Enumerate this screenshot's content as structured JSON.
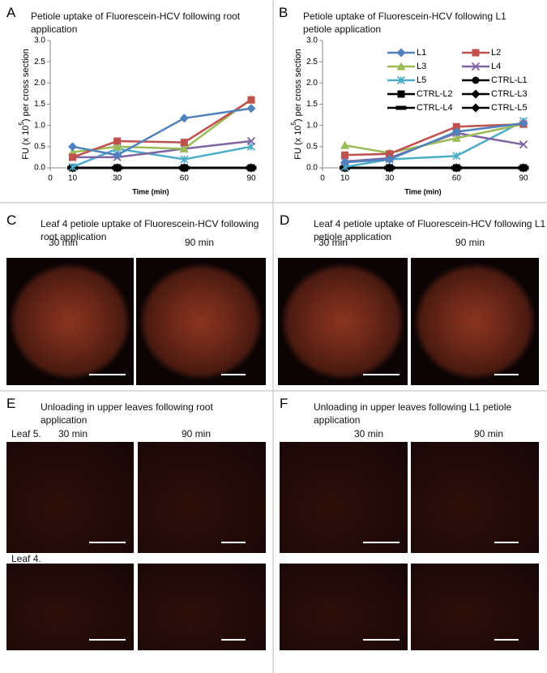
{
  "chart_data": [
    {
      "type": "line",
      "panel_label": "A",
      "title": "Petiole uptake of Fluorescein-HCV following root application",
      "ylabel": "FU (x 10",
      "ylabel_sup": "5",
      "ylabel_end": ") per cross section",
      "xlabel": "Time (min)",
      "x": [
        10,
        30,
        60,
        90
      ],
      "xlim": [
        0,
        90
      ],
      "xticks": [
        0,
        10,
        30,
        60,
        90
      ],
      "ylim": [
        0,
        3
      ],
      "yticks": [
        {
          "value": 0,
          "label": "0.0"
        },
        {
          "value": 0.5,
          "label": "0.5"
        },
        {
          "value": 1,
          "label": "1.0"
        },
        {
          "value": 1.5,
          "label": "1.5"
        },
        {
          "value": 2,
          "label": "2.0"
        },
        {
          "value": 2.5,
          "label": "2.5"
        },
        {
          "value": 3,
          "label": "3.0"
        }
      ],
      "grid": false,
      "legend": false,
      "series": [
        {
          "color": "#4f81bd",
          "marker": "diamond",
          "values": [
            0.5,
            0.3,
            1.17,
            1.4
          ]
        },
        {
          "color": "#c0504d",
          "marker": "square",
          "values": [
            0.25,
            0.63,
            0.6,
            1.6
          ]
        },
        {
          "color": "#9bbb59",
          "marker": "triangle",
          "values": [
            0.37,
            0.5,
            0.45,
            1.62
          ]
        },
        {
          "color": "#8064a2",
          "marker": "x",
          "values": [
            0.25,
            0.25,
            0.45,
            0.63
          ]
        },
        {
          "color": "#4bacc6",
          "marker": "star",
          "values": [
            0.02,
            0.45,
            0.2,
            0.5
          ]
        },
        {
          "color": "#000000",
          "marker": "circle",
          "values": [
            0,
            0,
            0,
            0
          ]
        },
        {
          "color": "#000000",
          "marker": "square",
          "values": [
            0,
            0,
            0,
            0
          ]
        },
        {
          "color": "#000000",
          "marker": "diamond",
          "values": [
            0,
            0,
            0,
            0
          ]
        },
        {
          "color": "#000000",
          "marker": "dash",
          "values": [
            0,
            0,
            0,
            0
          ]
        },
        {
          "color": "#000000",
          "marker": "diamond",
          "values": [
            0,
            0,
            0,
            0
          ]
        }
      ]
    },
    {
      "type": "line",
      "panel_label": "B",
      "title": "Petiole uptake of Fluorescein-HCV following L1 petiole application",
      "ylabel": "FU (x 10",
      "ylabel_sup": "5",
      "ylabel_end": ") per cross section",
      "xlabel": "Time (min)",
      "x": [
        10,
        30,
        60,
        90
      ],
      "xlim": [
        0,
        90
      ],
      "xticks": [
        0,
        10,
        30,
        60,
        90
      ],
      "ylim": [
        0,
        3
      ],
      "yticks": [
        {
          "value": 0,
          "label": "0.0"
        },
        {
          "value": 0.5,
          "label": "0.5"
        },
        {
          "value": 1,
          "label": "1.0"
        },
        {
          "value": 1.5,
          "label": "1.5"
        },
        {
          "value": 2,
          "label": "2.0"
        },
        {
          "value": 2.5,
          "label": "2.5"
        },
        {
          "value": 3,
          "label": "3.0"
        }
      ],
      "grid": false,
      "legend": "upper right",
      "legend_ncol": 2,
      "series": [
        {
          "name": "L1",
          "color": "#4f81bd",
          "marker": "diamond",
          "values": [
            0.13,
            0.2,
            0.85,
            1.05
          ]
        },
        {
          "name": "L2",
          "color": "#c0504d",
          "marker": "square",
          "values": [
            0.3,
            0.33,
            0.97,
            1.03
          ]
        },
        {
          "name": "L3",
          "color": "#9bbb59",
          "marker": "triangle",
          "values": [
            0.53,
            0.35,
            0.7,
            1.03
          ]
        },
        {
          "name": "L4",
          "color": "#8064a2",
          "marker": "x",
          "values": [
            0.15,
            0.23,
            0.82,
            0.55
          ]
        },
        {
          "name": "L5",
          "color": "#4bacc6",
          "marker": "star",
          "values": [
            0.02,
            0.2,
            0.28,
            1.1
          ]
        },
        {
          "name": "CTRL-L1",
          "color": "#000000",
          "marker": "circle",
          "values": [
            0,
            0,
            0,
            0
          ]
        },
        {
          "name": "CTRL-L2",
          "color": "#000000",
          "marker": "square",
          "values": [
            0,
            0,
            0,
            0
          ]
        },
        {
          "name": "CTRL-L3",
          "color": "#000000",
          "marker": "diamond",
          "values": [
            0,
            0,
            0,
            0
          ]
        },
        {
          "name": "CTRL-L4",
          "color": "#000000",
          "marker": "dash",
          "values": [
            0,
            0,
            0,
            0
          ]
        },
        {
          "name": "CTRL-L5",
          "color": "#000000",
          "marker": "diamond",
          "values": [
            0,
            0,
            0,
            0
          ]
        }
      ]
    }
  ],
  "panels": [
    {
      "label": "C",
      "title": "Leaf 4 petiole uptake of Fluorescein-HCV following root application",
      "captions": [
        "30 min",
        "90 min"
      ]
    },
    {
      "label": "D",
      "title": "Leaf 4 petiole uptake of Fluorescein-HCV following L1 petiole application",
      "captions": [
        "30 min",
        "90 min"
      ]
    },
    {
      "label": "E",
      "title": "Unloading in upper leaves following root application",
      "captions": [
        "30 min",
        "90 min"
      ],
      "row_labels": [
        "Leaf 5.",
        "Leaf 4."
      ]
    },
    {
      "label": "F",
      "title": "Unloading in upper leaves following L1 petiole application",
      "captions": [
        "30 min",
        "90 min"
      ]
    }
  ]
}
